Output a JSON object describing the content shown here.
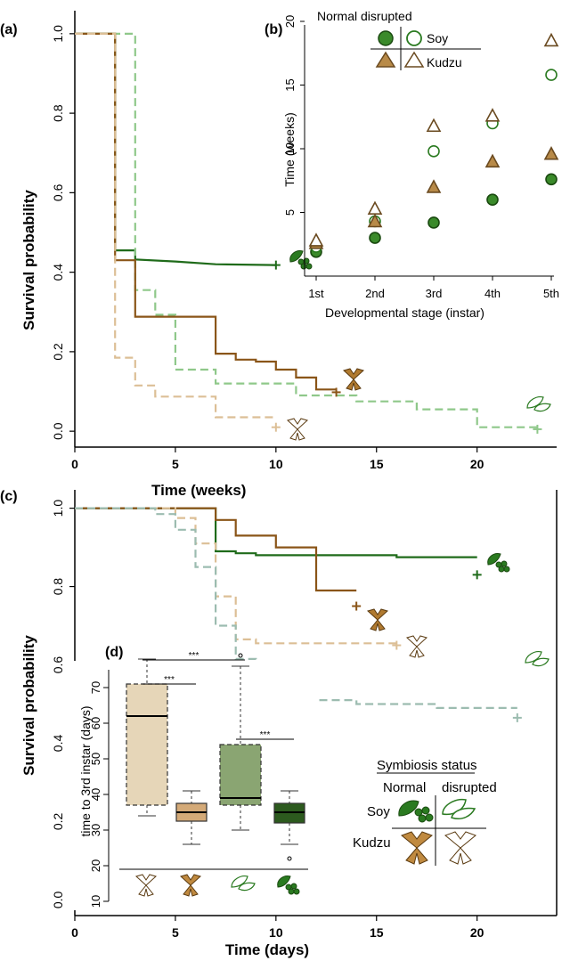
{
  "colors": {
    "normal_soy": "#1f6b1a",
    "disrupted_soy": "#8fc88a",
    "normal_kudzu": "#8a5518",
    "disrupted_kudzu": "#dcbf96",
    "disrupted_soy_c": "#9cbcb0",
    "soy_box_normal": "#8aa572",
    "kudzu_box_normal": "#d4aa78",
    "kudzu_box_disrupted": "#e6d6b8",
    "soy_box_disrupted_dark": "#2c5a1e"
  },
  "chart_data": [
    {
      "panel": "(a)",
      "type": "line",
      "xlabel": "Time (weeks)",
      "ylabel": "Survival probability",
      "xlim": [
        0,
        24
      ],
      "ylim": [
        -0.04,
        1.04
      ],
      "xticks": [
        "0",
        "5",
        "10",
        "15",
        "20"
      ],
      "yticks": [
        "0.0",
        "0.2",
        "0.4",
        "0.6",
        "0.8",
        "1.0"
      ],
      "series": [
        {
          "key": "normal_soy",
          "dashed": false,
          "x": [
            0,
            2,
            2,
            3,
            3,
            5,
            7,
            10
          ],
          "y": [
            1,
            1,
            0.455,
            0.455,
            0.432,
            0.427,
            0.42,
            0.418
          ],
          "end": [
            10,
            0.418
          ]
        },
        {
          "key": "disrupted_soy",
          "dashed": true,
          "x": [
            0,
            3,
            3,
            4,
            4,
            5,
            5,
            7,
            7,
            11,
            11,
            14,
            14,
            17,
            17,
            20,
            20,
            23
          ],
          "y": [
            1,
            1,
            0.355,
            0.355,
            0.293,
            0.293,
            0.155,
            0.155,
            0.12,
            0.12,
            0.09,
            0.09,
            0.075,
            0.075,
            0.055,
            0.055,
            0.01,
            0.01
          ],
          "end": [
            23,
            0.005
          ]
        },
        {
          "key": "normal_kudzu",
          "dashed": false,
          "x": [
            0,
            2,
            2,
            3,
            3,
            7,
            7,
            8,
            8,
            9,
            9,
            10,
            10,
            11,
            11,
            12,
            12,
            13
          ],
          "y": [
            1,
            1,
            0.43,
            0.43,
            0.288,
            0.288,
            0.195,
            0.195,
            0.18,
            0.18,
            0.175,
            0.175,
            0.155,
            0.155,
            0.135,
            0.135,
            0.105,
            0.105
          ],
          "end": [
            13,
            0.098
          ]
        },
        {
          "key": "disrupted_kudzu",
          "dashed": true,
          "x": [
            0,
            2,
            2,
            3,
            3,
            4,
            4,
            7,
            7,
            10
          ],
          "y": [
            1,
            1,
            0.185,
            0.185,
            0.115,
            0.115,
            0.087,
            0.087,
            0.035,
            0.035
          ],
          "end": [
            10,
            0.01
          ]
        }
      ]
    },
    {
      "panel": "(b)",
      "type": "scatter",
      "xlabel": "Developmental stage (instar)",
      "ylabel": "Time (weeks)",
      "categories": [
        "1st",
        "2nd",
        "3rd",
        "4th",
        "5th"
      ],
      "ylim": [
        0,
        20
      ],
      "yticks": [
        "5",
        "10",
        "15",
        "20"
      ],
      "legend_title": "Normal disrupted",
      "legend_labels": [
        "Soy",
        "Kudzu"
      ],
      "series": [
        {
          "key": "normal_soy",
          "shape": "circle",
          "filled": true,
          "values": [
            1.9,
            3.0,
            4.2,
            6.0,
            7.6
          ]
        },
        {
          "key": "disrupted_soy",
          "shape": "circle",
          "filled": false,
          "values": [
            2.3,
            4.3,
            9.8,
            12.0,
            15.8
          ]
        },
        {
          "key": "normal_kudzu",
          "shape": "triangle",
          "filled": true,
          "values": [
            2.6,
            4.3,
            7.0,
            9.0,
            9.6
          ]
        },
        {
          "key": "disrupted_kudzu",
          "shape": "triangle",
          "filled": false,
          "values": [
            2.8,
            5.3,
            11.8,
            12.6,
            18.5
          ]
        }
      ]
    },
    {
      "panel": "(c)",
      "type": "line",
      "xlabel": "Time (days)",
      "ylabel": "Survival probability",
      "xlim": [
        0,
        24
      ],
      "ylim": [
        -0.04,
        1.04
      ],
      "xticks": [
        "0",
        "5",
        "10",
        "15",
        "20"
      ],
      "yticks": [
        "0.0",
        "0.2",
        "0.4",
        "0.6",
        "0.8",
        "1.0"
      ],
      "series": [
        {
          "key": "normal_soy",
          "dashed": false,
          "x": [
            0,
            7,
            7,
            8,
            8,
            9,
            9,
            16,
            16,
            20
          ],
          "y": [
            1,
            1,
            0.89,
            0.89,
            0.885,
            0.885,
            0.88,
            0.88,
            0.875,
            0.875
          ],
          "end": [
            20,
            0.83
          ]
        },
        {
          "key": "normal_kudzu",
          "dashed": false,
          "x": [
            0,
            7,
            7,
            8,
            8,
            10,
            10,
            12,
            12,
            14
          ],
          "y": [
            1,
            1,
            0.97,
            0.97,
            0.93,
            0.93,
            0.9,
            0.9,
            0.79,
            0.79
          ],
          "end": [
            14,
            0.75
          ]
        },
        {
          "key": "disrupted_kudzu",
          "dashed": true,
          "x": [
            0,
            5,
            5,
            6,
            6,
            7,
            7,
            8,
            8,
            9,
            9,
            16
          ],
          "y": [
            1,
            1,
            0.975,
            0.975,
            0.91,
            0.91,
            0.775,
            0.775,
            0.665,
            0.665,
            0.655,
            0.655
          ],
          "end": [
            16,
            0.65
          ]
        },
        {
          "key": "disrupted_soy_c",
          "dashed": true,
          "x": [
            0,
            4,
            4,
            5,
            5,
            6,
            6,
            7,
            7,
            8,
            8,
            9,
            9,
            10,
            10,
            12,
            12,
            14,
            14,
            18,
            18,
            22
          ],
          "y": [
            1,
            1,
            0.985,
            0.985,
            0.945,
            0.945,
            0.85,
            0.85,
            0.7,
            0.7,
            0.615,
            0.615,
            0.59,
            0.59,
            0.535,
            0.535,
            0.51,
            0.51,
            0.5,
            0.5,
            0.49,
            0.49
          ],
          "end": [
            22,
            0.465
          ]
        }
      ]
    },
    {
      "panel": "(d)",
      "type": "box",
      "ylabel": "time to 3rd instar (days)",
      "ylim": [
        10,
        75
      ],
      "yticks": [
        "10",
        "20",
        "30",
        "40",
        "50",
        "60",
        "70"
      ],
      "boxes": [
        {
          "key": "kudzu_box_disrupted",
          "dashed": true,
          "q1": 37,
          "median": 62,
          "q3": 71,
          "min": 34,
          "max": 78,
          "outliers": []
        },
        {
          "key": "kudzu_box_normal",
          "dashed": false,
          "q1": 32.5,
          "median": 35,
          "q3": 37.5,
          "min": 26,
          "max": 41,
          "outliers": []
        },
        {
          "key": "soy_box_normal",
          "dashed": true,
          "q1": 37,
          "median": 39,
          "q3": 54,
          "min": 30,
          "max": 76,
          "outliers": [
            79
          ]
        },
        {
          "key": "soy_box_disrupted_dark",
          "dashed": false,
          "q1": 32,
          "median": 35,
          "q3": 37.5,
          "min": 26,
          "max": 41,
          "outliers": [
            22
          ]
        }
      ],
      "significance": [
        {
          "from": 0,
          "to": 2,
          "label": "***"
        },
        {
          "from": 0,
          "to": 1,
          "label": "***"
        },
        {
          "from": 2,
          "to": 3,
          "label": "***"
        }
      ]
    }
  ],
  "legend_c": {
    "title": "Symbiosis status",
    "col_normal": "Normal",
    "col_disrupted": "disrupted",
    "row_soy": "Soy",
    "row_kudzu": "Kudzu"
  }
}
